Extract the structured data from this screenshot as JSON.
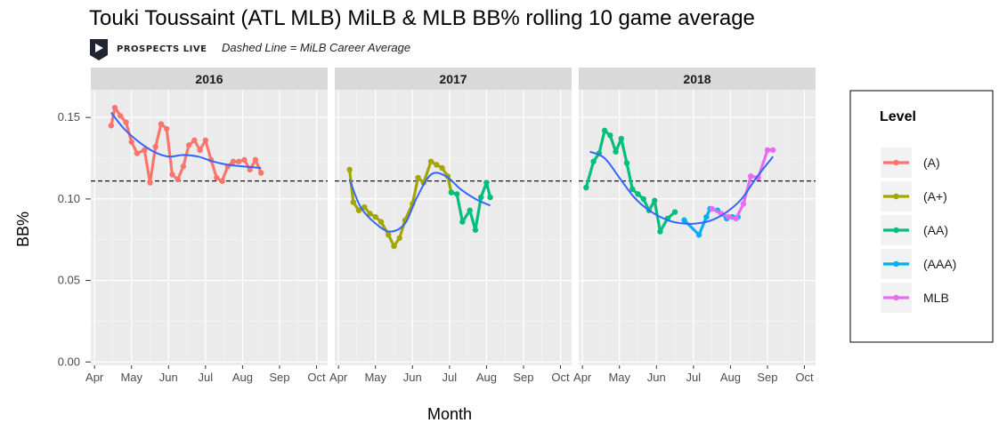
{
  "chart_data": {
    "type": "line",
    "title": "Touki Toussaint (ATL MLB) MiLB & MLB BB% rolling 10 game average",
    "subtitle": "Dashed Line = MiLB Career Average",
    "logo_text": "PROSPECTS LIVE",
    "xlabel": "Month",
    "ylabel": "BB%",
    "ylim": [
      -0.002,
      0.167
    ],
    "yticks": [
      0.0,
      0.05,
      0.1,
      0.15
    ],
    "ytick_labels": [
      "0.00",
      "0.05",
      "0.10",
      "0.15"
    ],
    "xlim_months": [
      3.9,
      10.3
    ],
    "xticks_months": [
      4,
      5,
      6,
      7,
      8,
      9,
      10
    ],
    "xtick_labels": [
      "Apr",
      "May",
      "Jun",
      "Jul",
      "Aug",
      "Sep",
      "Oct"
    ],
    "career_average": 0.111,
    "grid": true,
    "legend": {
      "title": "Level",
      "position": "right",
      "entries": [
        {
          "name": "(A)",
          "color": "#F8766D"
        },
        {
          "name": "(A+)",
          "color": "#A3A500"
        },
        {
          "name": "(AA)",
          "color": "#00BF7D"
        },
        {
          "name": "(AAA)",
          "color": "#00B0F6"
        },
        {
          "name": "MLB",
          "color": "#E76BF3"
        }
      ]
    },
    "smooth_color": "#3366FF",
    "facets": [
      {
        "label": "2016",
        "series": [
          {
            "name": "(A)",
            "points": [
              [
                4.45,
                0.145
              ],
              [
                4.55,
                0.156
              ],
              [
                4.7,
                0.151
              ],
              [
                4.85,
                0.147
              ],
              [
                5.0,
                0.135
              ],
              [
                5.15,
                0.128
              ],
              [
                5.35,
                0.13
              ],
              [
                5.5,
                0.11
              ],
              [
                5.65,
                0.132
              ],
              [
                5.8,
                0.146
              ],
              [
                5.95,
                0.143
              ],
              [
                6.1,
                0.115
              ],
              [
                6.25,
                0.112
              ],
              [
                6.4,
                0.12
              ],
              [
                6.55,
                0.133
              ],
              [
                6.7,
                0.136
              ],
              [
                6.85,
                0.13
              ],
              [
                7.0,
                0.136
              ],
              [
                7.15,
                0.124
              ],
              [
                7.3,
                0.113
              ],
              [
                7.45,
                0.111
              ],
              [
                7.6,
                0.12
              ],
              [
                7.75,
                0.123
              ],
              [
                7.9,
                0.123
              ],
              [
                8.05,
                0.124
              ],
              [
                8.2,
                0.118
              ],
              [
                8.35,
                0.124
              ],
              [
                8.5,
                0.116
              ]
            ]
          }
        ],
        "smooth": [
          [
            4.45,
            0.153
          ],
          [
            4.8,
            0.143
          ],
          [
            5.2,
            0.135
          ],
          [
            5.6,
            0.129
          ],
          [
            6.0,
            0.126
          ],
          [
            6.4,
            0.127
          ],
          [
            6.8,
            0.126
          ],
          [
            7.2,
            0.123
          ],
          [
            7.6,
            0.121
          ],
          [
            8.0,
            0.12
          ],
          [
            8.5,
            0.119
          ]
        ]
      },
      {
        "label": "2017",
        "series": [
          {
            "name": "(A+)",
            "points": [
              [
                4.3,
                0.118
              ],
              [
                4.4,
                0.098
              ],
              [
                4.55,
                0.093
              ],
              [
                4.7,
                0.095
              ],
              [
                4.85,
                0.091
              ],
              [
                5.0,
                0.089
              ],
              [
                5.15,
                0.086
              ],
              [
                5.35,
                0.078
              ],
              [
                5.5,
                0.071
              ],
              [
                5.65,
                0.076
              ],
              [
                5.8,
                0.087
              ],
              [
                6.0,
                0.097
              ],
              [
                6.15,
                0.113
              ],
              [
                6.3,
                0.11
              ],
              [
                6.5,
                0.123
              ],
              [
                6.65,
                0.121
              ],
              [
                6.8,
                0.119
              ],
              [
                6.95,
                0.114
              ],
              [
                7.05,
                0.104
              ]
            ]
          },
          {
            "name": "(AA)",
            "points": [
              [
                7.05,
                0.104
              ],
              [
                7.2,
                0.103
              ],
              [
                7.35,
                0.086
              ],
              [
                7.55,
                0.093
              ],
              [
                7.7,
                0.081
              ],
              [
                7.85,
                0.101
              ],
              [
                8.0,
                0.11
              ],
              [
                8.1,
                0.101
              ]
            ]
          }
        ],
        "smooth": [
          [
            4.3,
            0.112
          ],
          [
            4.6,
            0.095
          ],
          [
            5.0,
            0.085
          ],
          [
            5.4,
            0.08
          ],
          [
            5.8,
            0.085
          ],
          [
            6.1,
            0.1
          ],
          [
            6.5,
            0.115
          ],
          [
            6.9,
            0.114
          ],
          [
            7.3,
            0.106
          ],
          [
            7.7,
            0.1
          ],
          [
            8.1,
            0.096
          ]
        ]
      },
      {
        "label": "2018",
        "series": [
          {
            "name": "(AA)",
            "points": [
              [
                4.1,
                0.107
              ],
              [
                4.3,
                0.123
              ],
              [
                4.45,
                0.128
              ],
              [
                4.6,
                0.142
              ],
              [
                4.75,
                0.139
              ],
              [
                4.9,
                0.129
              ],
              [
                5.05,
                0.137
              ],
              [
                5.2,
                0.122
              ],
              [
                5.35,
                0.106
              ],
              [
                5.5,
                0.103
              ],
              [
                5.65,
                0.1
              ],
              [
                5.8,
                0.093
              ],
              [
                5.95,
                0.099
              ],
              [
                6.1,
                0.08
              ],
              [
                6.3,
                0.088
              ],
              [
                6.5,
                0.092
              ]
            ]
          },
          {
            "name": "(AAA)",
            "points": [
              [
                6.75,
                0.087
              ],
              [
                7.15,
                0.078
              ],
              [
                7.35,
                0.089
              ],
              [
                7.45,
                0.094
              ],
              [
                7.65,
                0.093
              ],
              [
                7.9,
                0.088
              ],
              [
                8.05,
                0.089
              ],
              [
                8.2,
                0.089
              ]
            ]
          },
          {
            "name": "MLB",
            "points": [
              [
                7.5,
                0.094
              ],
              [
                7.75,
                0.091
              ],
              [
                7.95,
                0.089
              ],
              [
                8.15,
                0.088
              ],
              [
                8.35,
                0.097
              ],
              [
                8.55,
                0.114
              ],
              [
                8.75,
                0.113
              ],
              [
                9.0,
                0.13
              ],
              [
                9.15,
                0.13
              ]
            ]
          }
        ],
        "smooth": [
          [
            4.2,
            0.129
          ],
          [
            4.6,
            0.125
          ],
          [
            5.0,
            0.113
          ],
          [
            5.4,
            0.101
          ],
          [
            5.8,
            0.093
          ],
          [
            6.3,
            0.087
          ],
          [
            6.7,
            0.085
          ],
          [
            7.1,
            0.085
          ],
          [
            7.5,
            0.087
          ],
          [
            7.9,
            0.092
          ],
          [
            8.3,
            0.1
          ],
          [
            8.7,
            0.113
          ],
          [
            9.15,
            0.126
          ]
        ]
      }
    ]
  }
}
